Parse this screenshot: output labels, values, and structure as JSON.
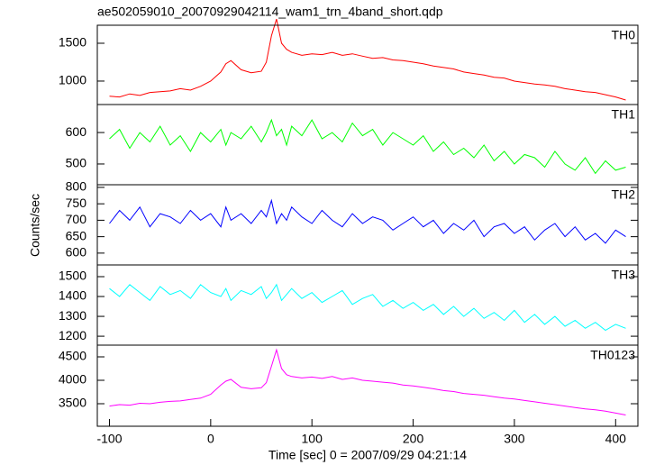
{
  "chart_data": [
    {
      "type": "line",
      "title": "ae502059010_20070929042114_wam1_trn_4band_short.qdp",
      "x": [
        -100,
        -90,
        -80,
        -70,
        -60,
        -50,
        -40,
        -30,
        -20,
        -10,
        0,
        10,
        15,
        20,
        30,
        40,
        50,
        55,
        60,
        65,
        70,
        75,
        80,
        90,
        100,
        110,
        120,
        130,
        140,
        150,
        160,
        170,
        180,
        190,
        200,
        210,
        220,
        230,
        240,
        250,
        260,
        270,
        280,
        290,
        300,
        310,
        320,
        330,
        340,
        350,
        360,
        370,
        380,
        390,
        400,
        410
      ],
      "xlim": [
        -112,
        422
      ],
      "series": [
        {
          "name": "TH0",
          "color": "#ff0000",
          "values": [
            800,
            790,
            830,
            810,
            850,
            860,
            870,
            900,
            880,
            930,
            1000,
            1120,
            1230,
            1270,
            1150,
            1110,
            1130,
            1250,
            1600,
            1820,
            1500,
            1420,
            1380,
            1340,
            1360,
            1350,
            1380,
            1340,
            1360,
            1330,
            1300,
            1310,
            1280,
            1270,
            1250,
            1230,
            1200,
            1180,
            1160,
            1120,
            1100,
            1080,
            1050,
            1040,
            1000,
            980,
            960,
            950,
            930,
            900,
            880,
            860,
            850,
            820,
            790,
            750
          ]
        }
      ],
      "ylim": [
        690,
        1738
      ],
      "yticks": [
        1000,
        1500
      ]
    },
    {
      "type": "line",
      "series": [
        {
          "name": "TH1",
          "color": "#00ff00",
          "values": [
            580,
            610,
            550,
            600,
            570,
            620,
            560,
            590,
            540,
            600,
            570,
            610,
            560,
            600,
            580,
            620,
            570,
            600,
            640,
            590,
            610,
            560,
            620,
            590,
            640,
            580,
            600,
            570,
            630,
            590,
            610,
            560,
            600,
            580,
            560,
            590,
            540,
            570,
            530,
            550,
            520,
            560,
            510,
            540,
            500,
            530,
            520,
            490,
            540,
            500,
            480,
            520,
            470,
            510,
            480,
            490
          ]
        }
      ],
      "ylim": [
        434,
        689
      ],
      "yticks": [
        500,
        600
      ]
    },
    {
      "type": "line",
      "ylabel": "Counts/sec",
      "series": [
        {
          "name": "TH2",
          "color": "#0000ff",
          "values": [
            690,
            730,
            700,
            740,
            680,
            720,
            710,
            690,
            730,
            700,
            720,
            680,
            740,
            700,
            720,
            690,
            730,
            710,
            760,
            690,
            720,
            700,
            740,
            710,
            690,
            730,
            700,
            680,
            720,
            690,
            710,
            700,
            670,
            690,
            710,
            680,
            700,
            660,
            690,
            670,
            700,
            650,
            680,
            690,
            660,
            680,
            640,
            670,
            690,
            650,
            680,
            640,
            660,
            630,
            670,
            650
          ]
        }
      ],
      "ylim": [
        564,
        808
      ],
      "yticks": [
        600,
        650,
        700,
        750,
        800
      ]
    },
    {
      "type": "line",
      "series": [
        {
          "name": "TH3",
          "color": "#00ffff",
          "values": [
            1440,
            1400,
            1460,
            1420,
            1380,
            1450,
            1410,
            1430,
            1390,
            1460,
            1420,
            1400,
            1440,
            1380,
            1430,
            1410,
            1450,
            1390,
            1420,
            1460,
            1380,
            1410,
            1440,
            1390,
            1420,
            1370,
            1400,
            1430,
            1360,
            1390,
            1410,
            1350,
            1380,
            1340,
            1370,
            1330,
            1360,
            1310,
            1350,
            1300,
            1340,
            1290,
            1320,
            1280,
            1330,
            1270,
            1310,
            1260,
            1300,
            1250,
            1280,
            1240,
            1270,
            1230,
            1260,
            1240
          ]
        }
      ],
      "ylim": [
        1155,
        1559
      ],
      "yticks": [
        1200,
        1300,
        1400,
        1500
      ]
    },
    {
      "type": "line",
      "xlabel": "Time [sec] 0 = 2007/09/29 04:21:14",
      "series": [
        {
          "name": "TH0123",
          "color": "#ff00ff",
          "values": [
            3450,
            3480,
            3470,
            3510,
            3500,
            3530,
            3550,
            3560,
            3590,
            3620,
            3700,
            3900,
            3980,
            4020,
            3850,
            3820,
            3840,
            3950,
            4300,
            4650,
            4250,
            4120,
            4080,
            4050,
            4070,
            4040,
            4080,
            4020,
            4050,
            4000,
            3980,
            3960,
            3940,
            3900,
            3880,
            3850,
            3820,
            3780,
            3760,
            3720,
            3700,
            3680,
            3650,
            3620,
            3600,
            3570,
            3540,
            3510,
            3480,
            3450,
            3420,
            3390,
            3370,
            3340,
            3300,
            3260
          ]
        }
      ],
      "ylim": [
        3019,
        4750
      ],
      "yticks": [
        3500,
        4000,
        4500
      ],
      "xticks": [
        -100,
        0,
        100,
        200,
        300,
        400
      ]
    }
  ]
}
